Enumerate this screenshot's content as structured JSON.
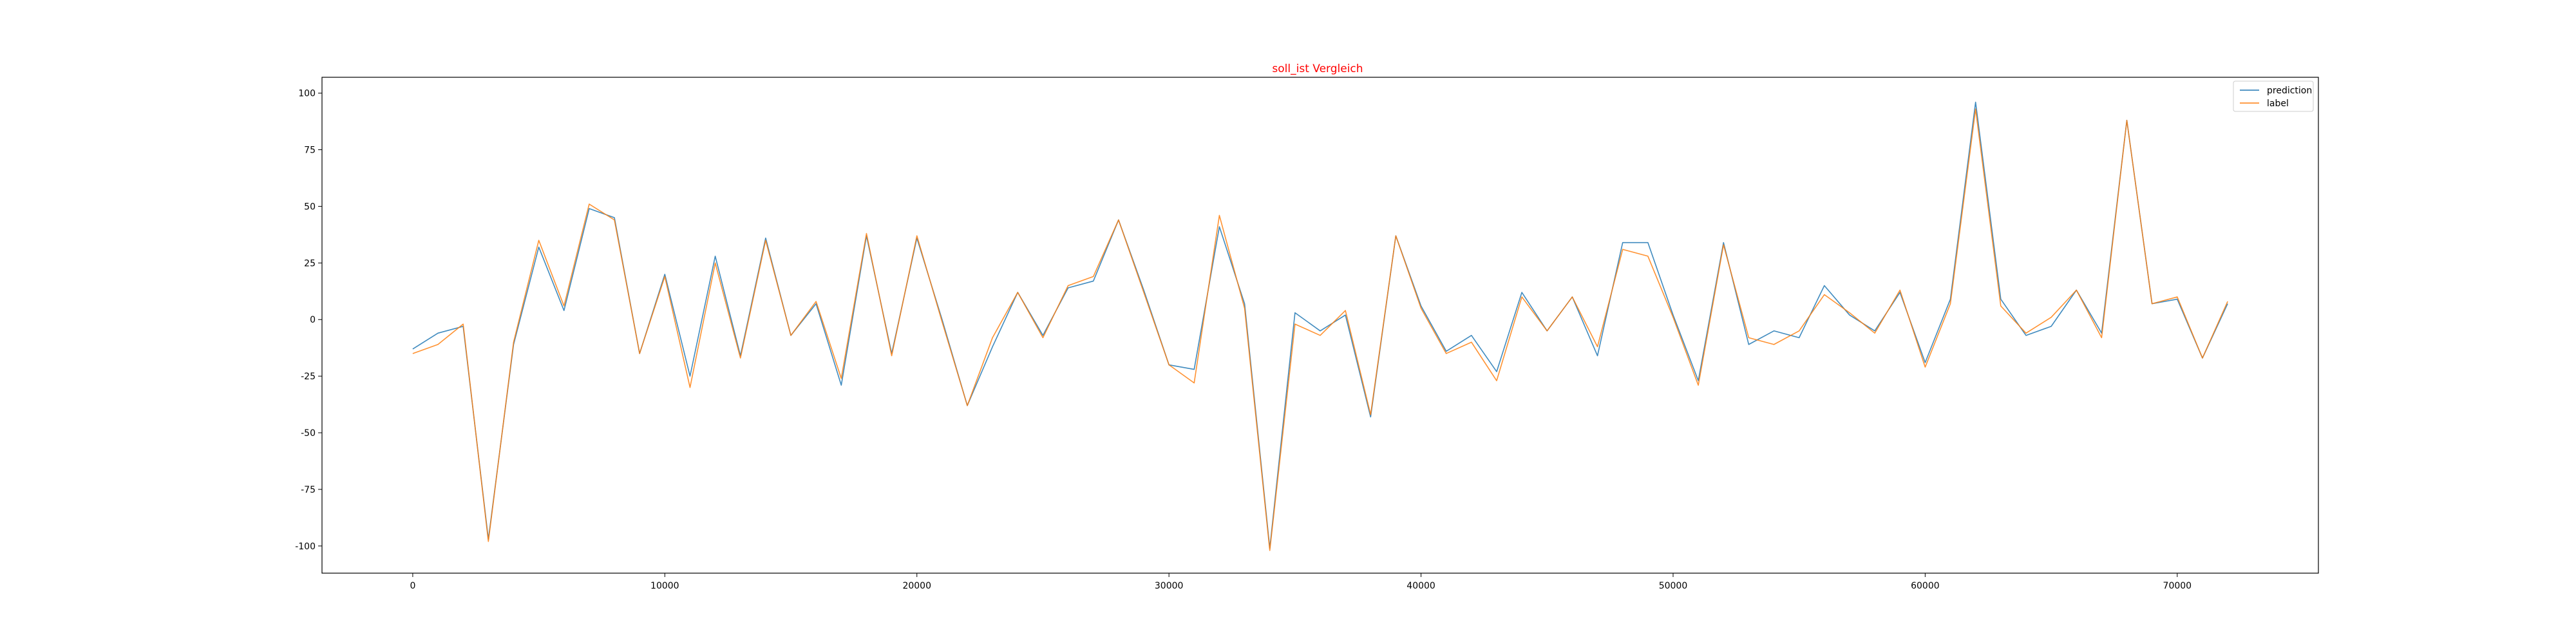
{
  "chart_data": {
    "type": "line",
    "title": "soll_ist Vergleich",
    "title_color": "#ff0000",
    "xlabel": "",
    "ylabel": "",
    "xlim": [
      -3600,
      75600
    ],
    "ylim": [
      -112,
      107
    ],
    "xticks": [
      0,
      10000,
      20000,
      30000,
      40000,
      50000,
      60000,
      70000
    ],
    "xtick_labels": [
      "0",
      "10000",
      "20000",
      "30000",
      "40000",
      "50000",
      "60000",
      "70000"
    ],
    "yticks": [
      -100,
      -75,
      -50,
      -25,
      0,
      25,
      50,
      75,
      100
    ],
    "ytick_labels": [
      "-100",
      "-75",
      "-50",
      "-25",
      "0",
      "25",
      "50",
      "75",
      "100"
    ],
    "grid": false,
    "legend_position": "top-right",
    "x": [
      0,
      1000,
      2000,
      3000,
      4000,
      5000,
      6000,
      7000,
      8000,
      9000,
      10000,
      11000,
      12000,
      13000,
      14000,
      15000,
      16000,
      17000,
      18000,
      19000,
      20000,
      21000,
      22000,
      23000,
      24000,
      25000,
      26000,
      27000,
      28000,
      29000,
      30000,
      31000,
      32000,
      33000,
      34000,
      35000,
      36000,
      37000,
      38000,
      39000,
      40000,
      41000,
      42000,
      43000,
      44000,
      45000,
      46000,
      47000,
      48000,
      49000,
      50000,
      51000,
      52000,
      53000,
      54000,
      55000,
      56000,
      57000,
      58000,
      59000,
      60000,
      61000,
      62000,
      63000,
      64000,
      65000,
      66000,
      67000,
      68000,
      69000,
      70000,
      71000,
      72000
    ],
    "series": [
      {
        "name": "prediction",
        "color": "#1f77b4",
        "values": [
          -13,
          -6,
          -3,
          -97,
          -11,
          32,
          4,
          49,
          45,
          -15,
          20,
          -25,
          28,
          -16,
          36,
          -7,
          7,
          -29,
          37,
          -15,
          36,
          0,
          -38,
          -12,
          12,
          -7,
          14,
          17,
          44,
          13,
          -20,
          -22,
          41,
          7,
          -101,
          3,
          -5,
          2,
          -43,
          37,
          6,
          -14,
          -7,
          -23,
          12,
          -5,
          10,
          -16,
          34,
          34,
          2,
          -27,
          34,
          -11,
          -5,
          -8,
          15,
          2,
          -5,
          12,
          -19,
          9,
          96,
          9,
          -7,
          -3,
          13,
          -6,
          88,
          7,
          9,
          -17,
          7
        ]
      },
      {
        "name": "label",
        "color": "#ff7f0e",
        "values": [
          -15,
          -11,
          -2,
          -98,
          -10,
          35,
          6,
          51,
          44,
          -15,
          19,
          -30,
          25,
          -17,
          35,
          -7,
          8,
          -26,
          38,
          -16,
          37,
          -1,
          -38,
          -8,
          12,
          -8,
          15,
          19,
          44,
          12,
          -20,
          -28,
          46,
          5,
          -102,
          -2,
          -7,
          4,
          -42,
          37,
          5,
          -15,
          -10,
          -27,
          10,
          -5,
          10,
          -12,
          31,
          28,
          1,
          -29,
          33,
          -8,
          -11,
          -5,
          11,
          3,
          -6,
          13,
          -21,
          7,
          93,
          6,
          -6,
          1,
          13,
          -8,
          88,
          7,
          10,
          -17,
          8
        ]
      }
    ]
  }
}
